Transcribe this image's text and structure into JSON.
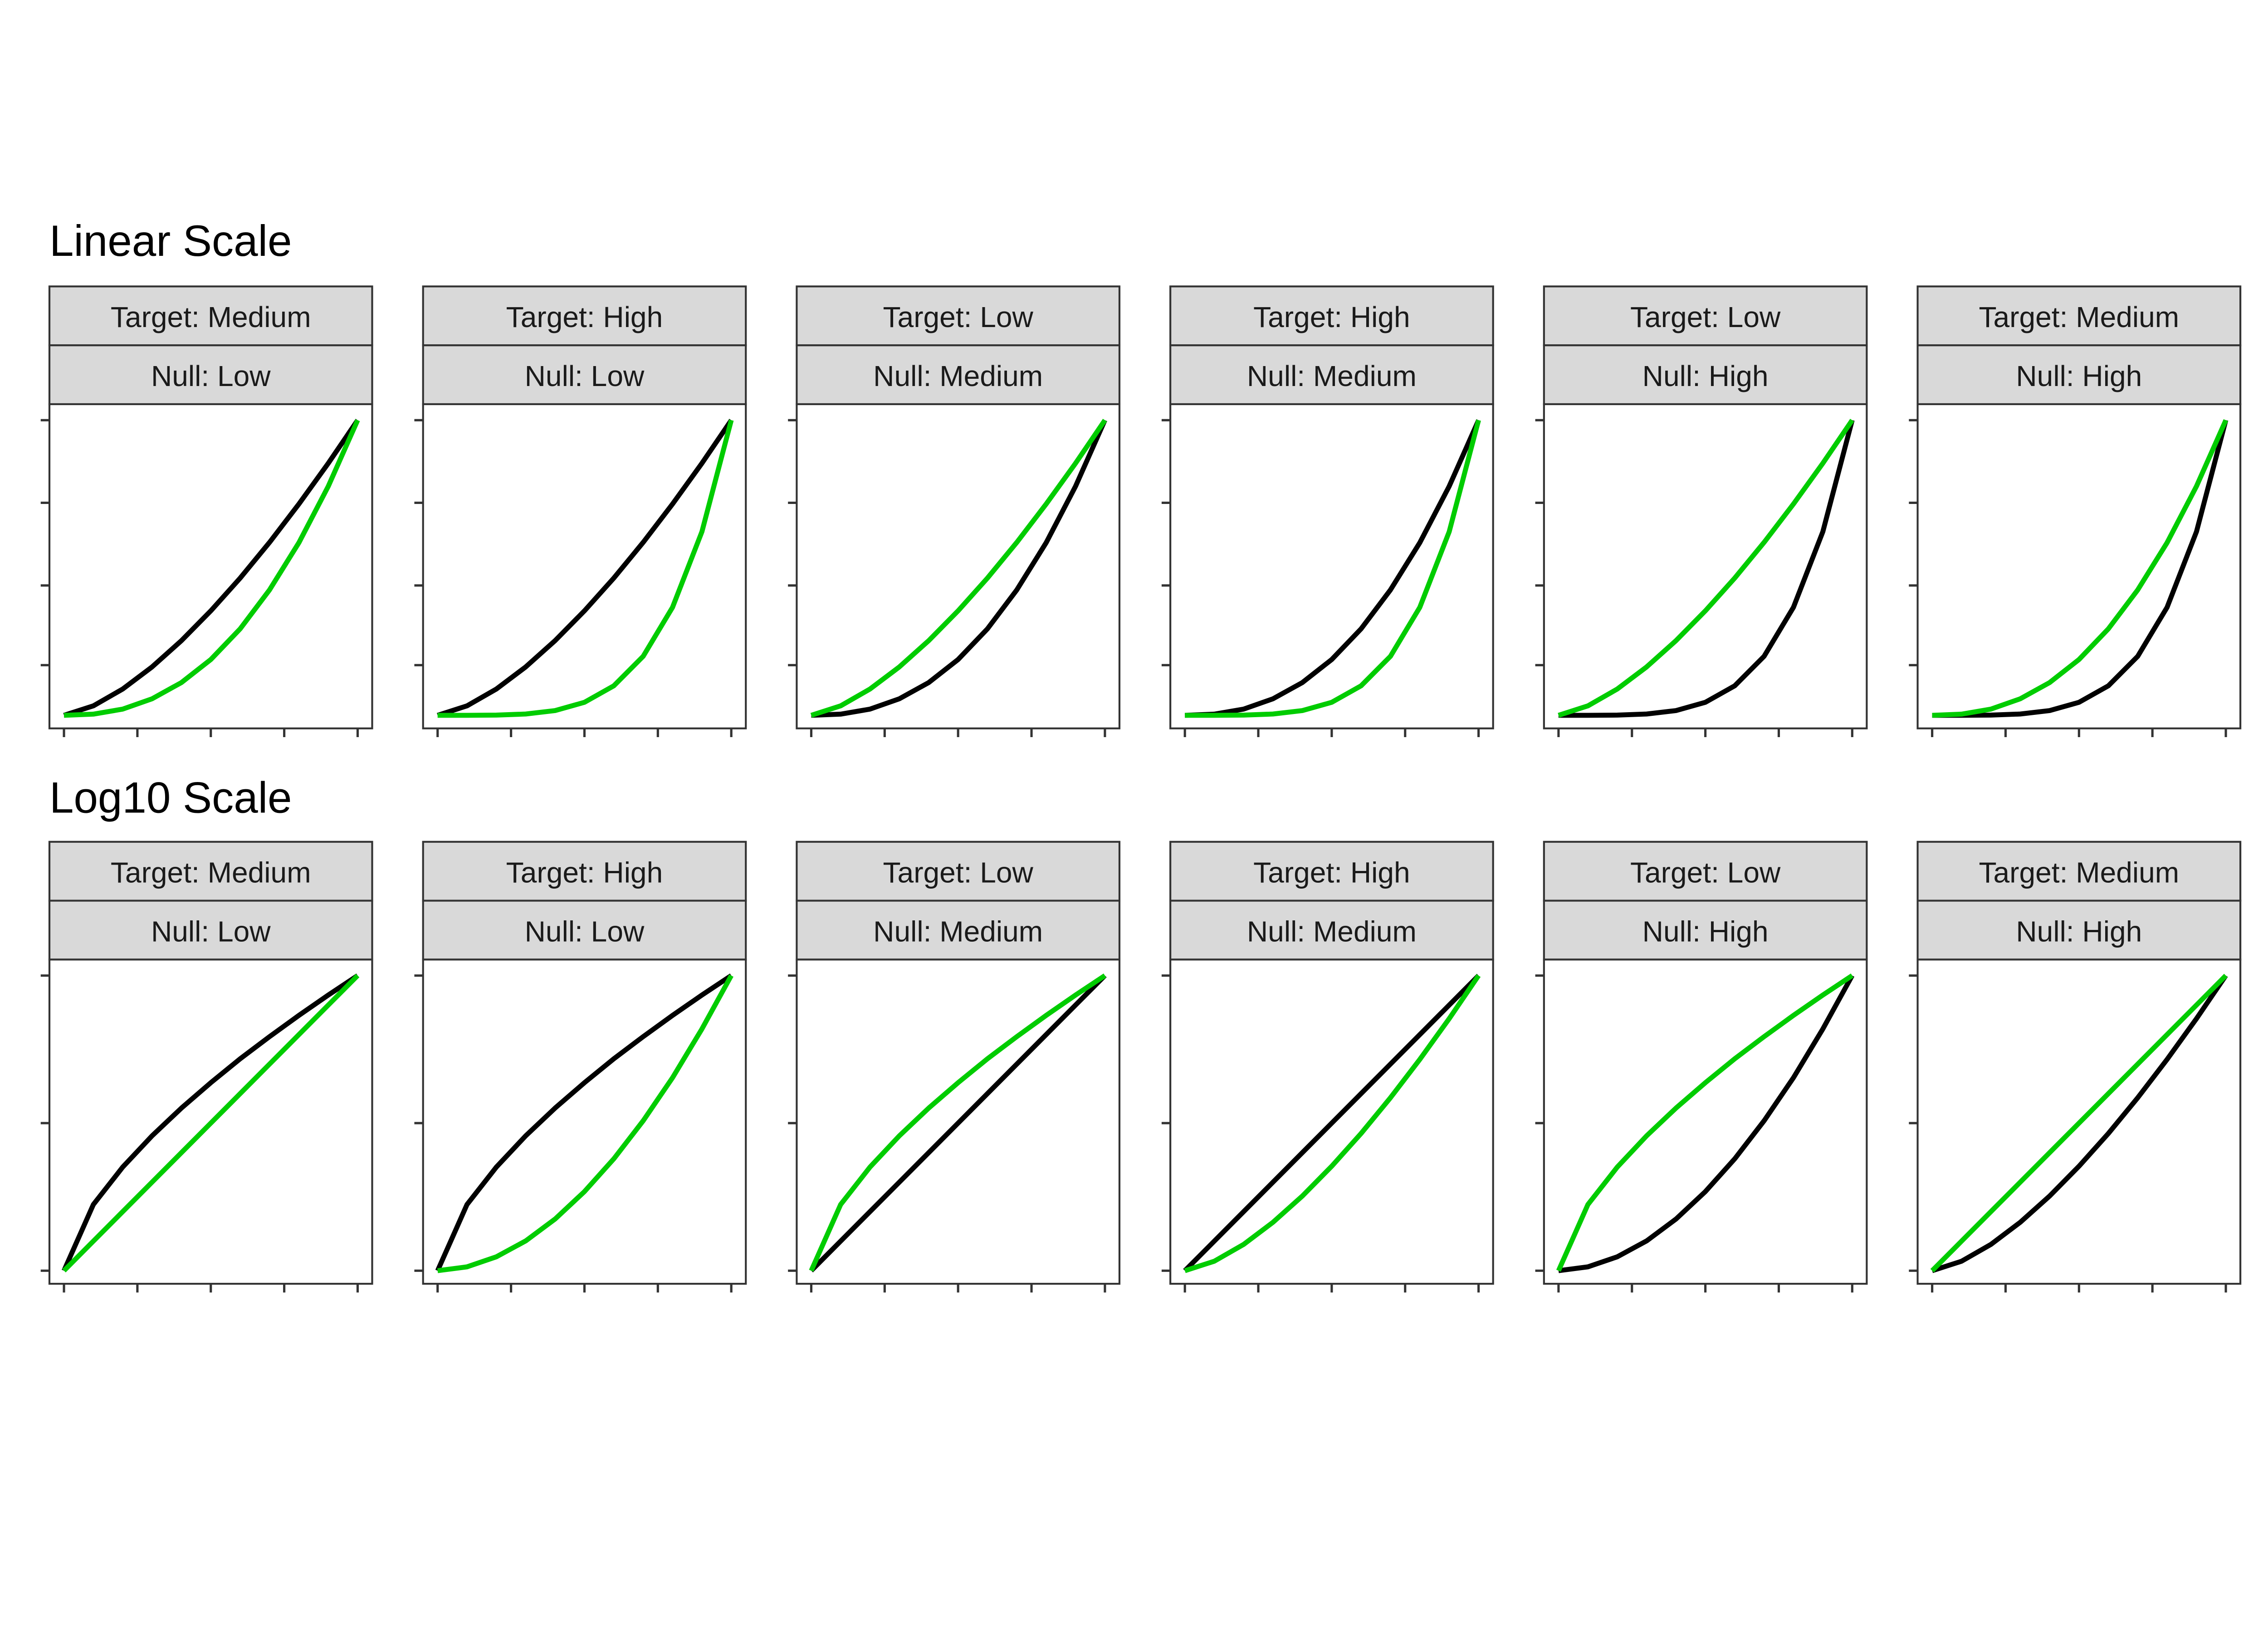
{
  "colors": {
    "black_series": "#000000",
    "green_series": "#00CC00",
    "strip_fill": "#D9D9D9",
    "frame": "#333333"
  },
  "chart_data": [
    {
      "type": "line",
      "title": "Linear Scale",
      "x": [
        0,
        0.1,
        0.2,
        0.3,
        0.4,
        0.5,
        0.6,
        0.7,
        0.8,
        0.9,
        1
      ],
      "xlim": [
        0,
        1
      ],
      "ylim": [
        0,
        1
      ],
      "x_ticks": [
        0,
        0.25,
        0.5,
        0.75,
        1
      ],
      "y_ticks": [
        0.17,
        0.44,
        0.72,
        1
      ],
      "tick_labels_shown": false,
      "grid": false,
      "panels": [
        {
          "target": "Target: Medium",
          "null": "Null: Low",
          "black": [
            0,
            0.032,
            0.089,
            0.164,
            0.253,
            0.354,
            0.465,
            0.586,
            0.716,
            0.854,
            1
          ],
          "green": [
            0,
            0.004,
            0.021,
            0.056,
            0.111,
            0.189,
            0.293,
            0.425,
            0.585,
            0.776,
            1
          ]
        },
        {
          "target": "Target: High",
          "null": "Null: Low",
          "black": [
            0,
            0.032,
            0.089,
            0.164,
            0.253,
            0.354,
            0.465,
            0.586,
            0.716,
            0.854,
            1
          ],
          "green": [
            0,
            0,
            0.0007,
            0.0044,
            0.016,
            0.044,
            0.1,
            0.2,
            0.366,
            0.622,
            1
          ]
        },
        {
          "target": "Target: Low",
          "null": "Null: Medium",
          "black": [
            0,
            0.004,
            0.021,
            0.056,
            0.111,
            0.189,
            0.293,
            0.425,
            0.585,
            0.776,
            1
          ],
          "green": [
            0,
            0.032,
            0.089,
            0.164,
            0.253,
            0.354,
            0.465,
            0.586,
            0.716,
            0.854,
            1
          ]
        },
        {
          "target": "Target: High",
          "null": "Null: Medium",
          "black": [
            0,
            0.004,
            0.021,
            0.056,
            0.111,
            0.189,
            0.293,
            0.425,
            0.585,
            0.776,
            1
          ],
          "green": [
            0,
            0,
            0.0007,
            0.0044,
            0.016,
            0.044,
            0.1,
            0.2,
            0.366,
            0.622,
            1
          ]
        },
        {
          "target": "Target: Low",
          "null": "Null: High",
          "black": [
            0,
            0,
            0.0007,
            0.0044,
            0.016,
            0.044,
            0.1,
            0.2,
            0.366,
            0.622,
            1
          ],
          "green": [
            0,
            0.032,
            0.089,
            0.164,
            0.253,
            0.354,
            0.465,
            0.586,
            0.716,
            0.854,
            1
          ]
        },
        {
          "target": "Target: Medium",
          "null": "Null: High",
          "black": [
            0,
            0,
            0.0007,
            0.0044,
            0.016,
            0.044,
            0.1,
            0.2,
            0.366,
            0.622,
            1
          ],
          "green": [
            0,
            0.004,
            0.021,
            0.056,
            0.111,
            0.189,
            0.293,
            0.425,
            0.585,
            0.776,
            1
          ]
        }
      ]
    },
    {
      "type": "line",
      "title": "Log10 Scale",
      "x": [
        0,
        0.1,
        0.2,
        0.3,
        0.4,
        0.5,
        0.6,
        0.7,
        0.8,
        0.9,
        1
      ],
      "xlim": [
        0,
        1
      ],
      "ylim": [
        0,
        1
      ],
      "x_ticks": [
        0,
        0.25,
        0.5,
        0.75,
        1
      ],
      "y_ticks": [
        0,
        0.5,
        1
      ],
      "tick_labels_shown": false,
      "grid": false,
      "panels": [
        {
          "target": "Target: Medium",
          "null": "Null: Low",
          "black": [
            0,
            0.224,
            0.351,
            0.457,
            0.551,
            0.637,
            0.718,
            0.793,
            0.865,
            0.934,
            1
          ],
          "green": [
            0,
            0.1,
            0.2,
            0.3,
            0.4,
            0.5,
            0.6,
            0.7,
            0.8,
            0.9,
            1
          ]
        },
        {
          "target": "Target: High",
          "null": "Null: Low",
          "black": [
            0,
            0.224,
            0.351,
            0.457,
            0.551,
            0.637,
            0.718,
            0.793,
            0.865,
            0.934,
            1
          ],
          "green": [
            0,
            0.013,
            0.047,
            0.101,
            0.175,
            0.268,
            0.379,
            0.508,
            0.654,
            0.819,
            1
          ]
        },
        {
          "target": "Target: Low",
          "null": "Null: Medium",
          "black": [
            0,
            0.1,
            0.2,
            0.3,
            0.4,
            0.5,
            0.6,
            0.7,
            0.8,
            0.9,
            1
          ],
          "green": [
            0,
            0.224,
            0.351,
            0.457,
            0.551,
            0.637,
            0.718,
            0.793,
            0.865,
            0.934,
            1
          ]
        },
        {
          "target": "Target: High",
          "null": "Null: Medium",
          "black": [
            0,
            0.1,
            0.2,
            0.3,
            0.4,
            0.5,
            0.6,
            0.7,
            0.8,
            0.9,
            1
          ],
          "green": [
            0,
            0.032,
            0.089,
            0.164,
            0.253,
            0.354,
            0.465,
            0.586,
            0.716,
            0.854,
            1
          ]
        },
        {
          "target": "Target: Low",
          "null": "Null: High",
          "black": [
            0,
            0.013,
            0.047,
            0.101,
            0.175,
            0.268,
            0.379,
            0.508,
            0.654,
            0.819,
            1
          ],
          "green": [
            0,
            0.224,
            0.351,
            0.457,
            0.551,
            0.637,
            0.718,
            0.793,
            0.865,
            0.934,
            1
          ]
        },
        {
          "target": "Target: Medium",
          "null": "Null: High",
          "black": [
            0,
            0.032,
            0.089,
            0.164,
            0.253,
            0.354,
            0.465,
            0.586,
            0.716,
            0.854,
            1
          ],
          "green": [
            0,
            0.1,
            0.2,
            0.3,
            0.4,
            0.5,
            0.6,
            0.7,
            0.8,
            0.9,
            1
          ]
        }
      ]
    }
  ]
}
